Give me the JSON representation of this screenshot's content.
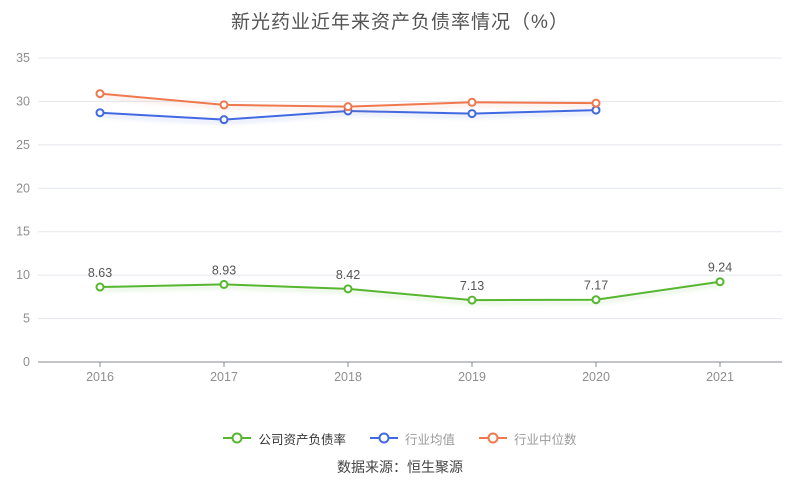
{
  "title": "新光药业近年来资产负债率情况（%）",
  "source": "数据来源：恒生聚源",
  "chart_data": {
    "type": "line",
    "title": "新光药业近年来资产负债率情况（%）",
    "categories": [
      "2016",
      "2017",
      "2018",
      "2019",
      "2020",
      "2021"
    ],
    "xlabel": "",
    "ylabel": "",
    "ylim": [
      0,
      35
    ],
    "y_ticks": [
      0,
      5,
      10,
      15,
      20,
      25,
      30,
      35
    ],
    "grid": true,
    "legend_position": "bottom",
    "series": [
      {
        "name": "公司资产负债率",
        "color": "#56b62f",
        "legend_text_color": "#333333",
        "values": [
          8.63,
          8.93,
          8.42,
          7.13,
          7.17,
          9.24
        ],
        "point_labels": [
          "8.63",
          "8.93",
          "8.42",
          "7.13",
          "7.17",
          "9.24"
        ]
      },
      {
        "name": "行业均值",
        "color": "#4169e1",
        "legend_text_color": "#9b9b9b",
        "values": [
          28.7,
          27.9,
          28.9,
          28.6,
          29.0
        ]
      },
      {
        "name": "行业中位数",
        "color": "#f0784e",
        "legend_text_color": "#9b9b9b",
        "values": [
          30.9,
          29.6,
          29.4,
          29.9,
          29.8
        ]
      }
    ]
  }
}
